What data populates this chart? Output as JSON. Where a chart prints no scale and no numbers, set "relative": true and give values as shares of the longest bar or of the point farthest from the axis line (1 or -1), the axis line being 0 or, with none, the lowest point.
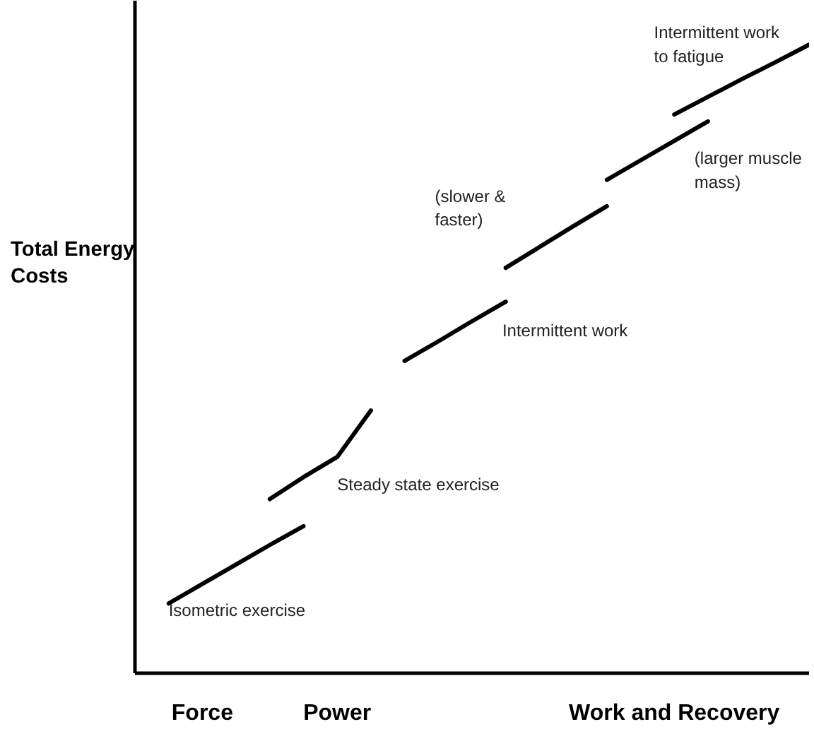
{
  "chart_data": {
    "type": "line",
    "relative": true,
    "ylabel": "Total Energy Costs",
    "categories": [
      null,
      null,
      "Force",
      null,
      null,
      null,
      "Power",
      null,
      null,
      null,
      null,
      null,
      null,
      null,
      null,
      null,
      "Work and Recovery",
      null,
      null,
      null,
      null
    ],
    "grid": false,
    "marker": "none",
    "line_style": "solid",
    "series": [
      {
        "color": "#000000",
        "values": [
          null,
          0.111,
          0.142,
          0.173,
          0.204,
          0.234,
          null,
          null,
          null,
          null,
          null,
          null,
          null,
          null,
          null,
          null,
          null,
          null,
          null,
          null,
          null
        ]
      },
      {
        "color": "#000000",
        "values": [
          null,
          null,
          null,
          null,
          0.277,
          0.312,
          0.344,
          0.418,
          null,
          null,
          null,
          null,
          null,
          null,
          null,
          null,
          null,
          null,
          null,
          null,
          null
        ]
      },
      {
        "color": "#000000",
        "values": [
          null,
          null,
          null,
          null,
          null,
          null,
          null,
          null,
          0.497,
          0.528,
          0.56,
          0.591,
          null,
          null,
          null,
          null,
          null,
          null,
          null,
          null,
          null
        ]
      },
      {
        "color": "#000000",
        "values": [
          null,
          null,
          null,
          null,
          null,
          null,
          null,
          null,
          null,
          null,
          null,
          0.645,
          0.678,
          0.711,
          0.743,
          null,
          null,
          null,
          null,
          null,
          null
        ]
      },
      {
        "color": "#000000",
        "values": [
          null,
          null,
          null,
          null,
          null,
          null,
          null,
          null,
          null,
          null,
          null,
          null,
          null,
          null,
          0.785,
          0.816,
          0.847,
          0.878,
          null,
          null,
          null
        ]
      },
      {
        "color": "#000000",
        "values": [
          null,
          null,
          null,
          null,
          null,
          null,
          null,
          null,
          null,
          null,
          null,
          null,
          null,
          null,
          null,
          null,
          0.889,
          0.917,
          0.945,
          0.972,
          1.0
        ]
      }
    ],
    "annotations": [
      "Isometric exercise",
      "Steady state exercise",
      "Intermittent work",
      "(slower &\nfaster)",
      "(larger muscle\nmass)",
      "Intermittent work\nto fatigue"
    ]
  }
}
